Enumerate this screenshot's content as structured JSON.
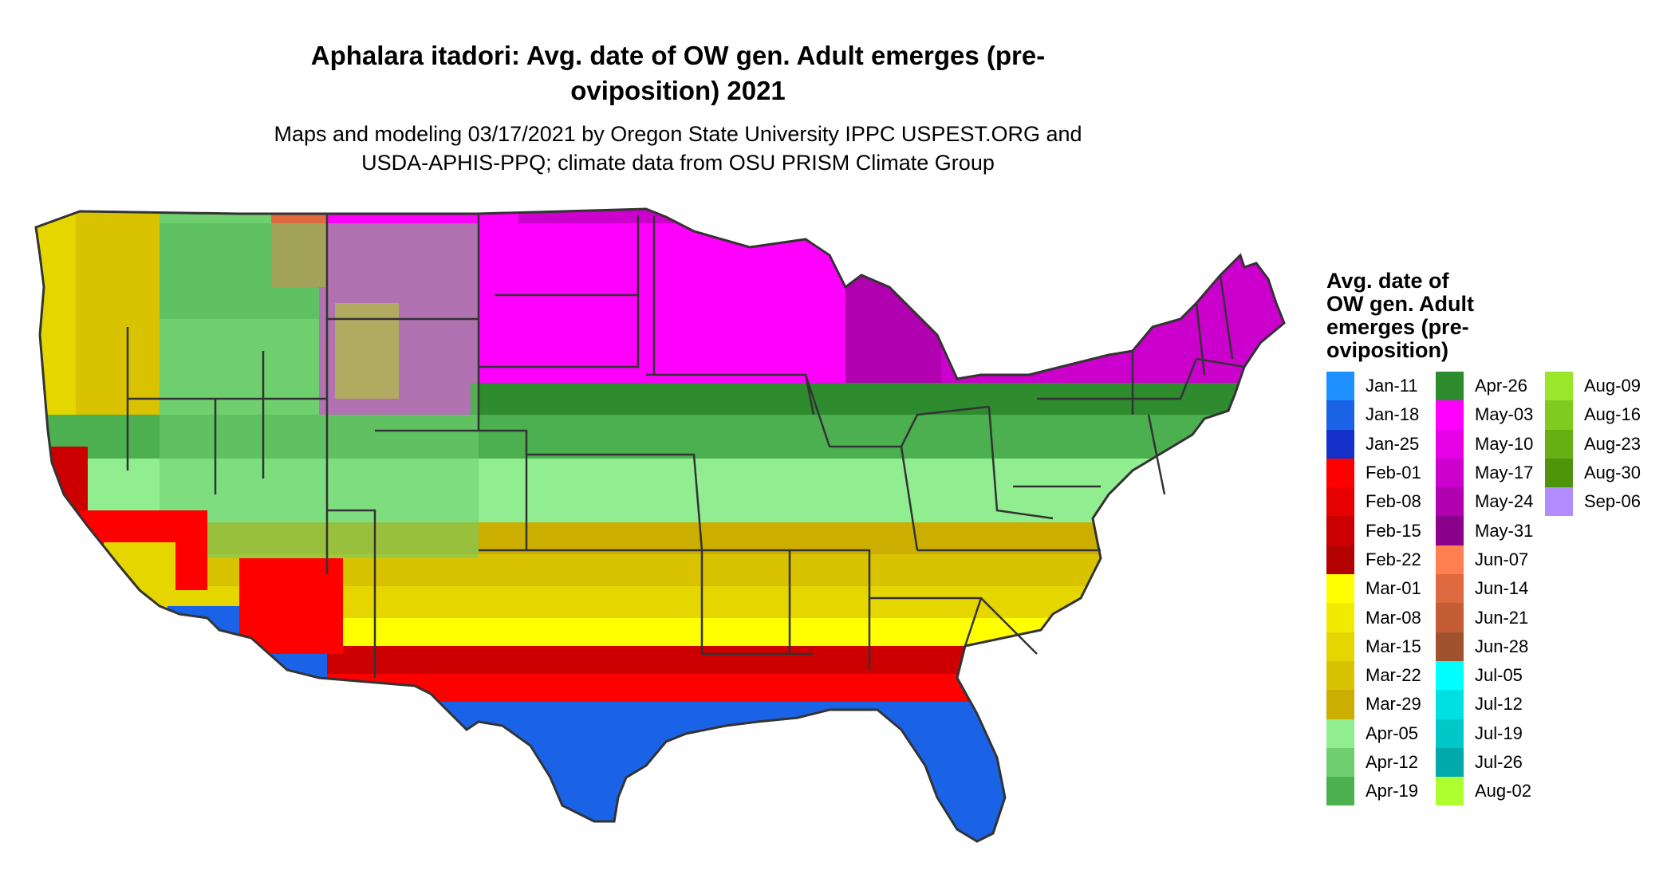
{
  "title_line1": "Aphalara itadori: Avg. date of OW gen. Adult emerges (pre-",
  "title_line2": "oviposition) 2021",
  "subtitle_line1": "Maps and modeling 03/17/2021 by Oregon State University IPPC USPEST.ORG and",
  "subtitle_line2": "USDA-APHIS-PPQ; climate data from OSU PRISM Climate Group",
  "legend": {
    "title_lines": [
      "Avg. date of",
      "OW gen. Adult",
      "emerges (pre-",
      "oviposition)"
    ],
    "columns": [
      [
        {
          "label": "Jan-11",
          "color": "#1e90ff"
        },
        {
          "label": "Jan-18",
          "color": "#1a63e6"
        },
        {
          "label": "Jan-25",
          "color": "#1531cc"
        },
        {
          "label": "Feb-01",
          "color": "#ff0000"
        },
        {
          "label": "Feb-08",
          "color": "#e60000"
        },
        {
          "label": "Feb-15",
          "color": "#cc0000"
        },
        {
          "label": "Feb-22",
          "color": "#b30000"
        },
        {
          "label": "Mar-01",
          "color": "#ffff00"
        },
        {
          "label": "Mar-08",
          "color": "#f2ea00"
        },
        {
          "label": "Mar-15",
          "color": "#e6d600"
        },
        {
          "label": "Mar-22",
          "color": "#d9c200"
        },
        {
          "label": "Mar-29",
          "color": "#ccae00"
        },
        {
          "label": "Apr-05",
          "color": "#90ee90"
        },
        {
          "label": "Apr-12",
          "color": "#6fcf6f"
        },
        {
          "label": "Apr-19",
          "color": "#4caf50"
        }
      ],
      [
        {
          "label": "Apr-26",
          "color": "#2e8b2e"
        },
        {
          "label": "May-03",
          "color": "#ff00ff"
        },
        {
          "label": "May-10",
          "color": "#e600e6"
        },
        {
          "label": "May-17",
          "color": "#cc00cc"
        },
        {
          "label": "May-24",
          "color": "#b000b0"
        },
        {
          "label": "May-31",
          "color": "#8b008b"
        },
        {
          "label": "Jun-07",
          "color": "#ff7f50"
        },
        {
          "label": "Jun-14",
          "color": "#e06a40"
        },
        {
          "label": "Jun-21",
          "color": "#c45c34"
        },
        {
          "label": "Jun-28",
          "color": "#a0522d"
        },
        {
          "label": "Jul-05",
          "color": "#00ffff"
        },
        {
          "label": "Jul-12",
          "color": "#00e0e0"
        },
        {
          "label": "Jul-19",
          "color": "#00c8c8"
        },
        {
          "label": "Jul-26",
          "color": "#00aaaa"
        },
        {
          "label": "Aug-02",
          "color": "#adff2f"
        }
      ],
      [
        {
          "label": "Aug-09",
          "color": "#9ae62a"
        },
        {
          "label": "Aug-16",
          "color": "#7fcc1f"
        },
        {
          "label": "Aug-23",
          "color": "#66b014"
        },
        {
          "label": "Aug-30",
          "color": "#4c940a"
        },
        {
          "label": "Sep-06",
          "color": "#b38cff"
        }
      ]
    ]
  }
}
